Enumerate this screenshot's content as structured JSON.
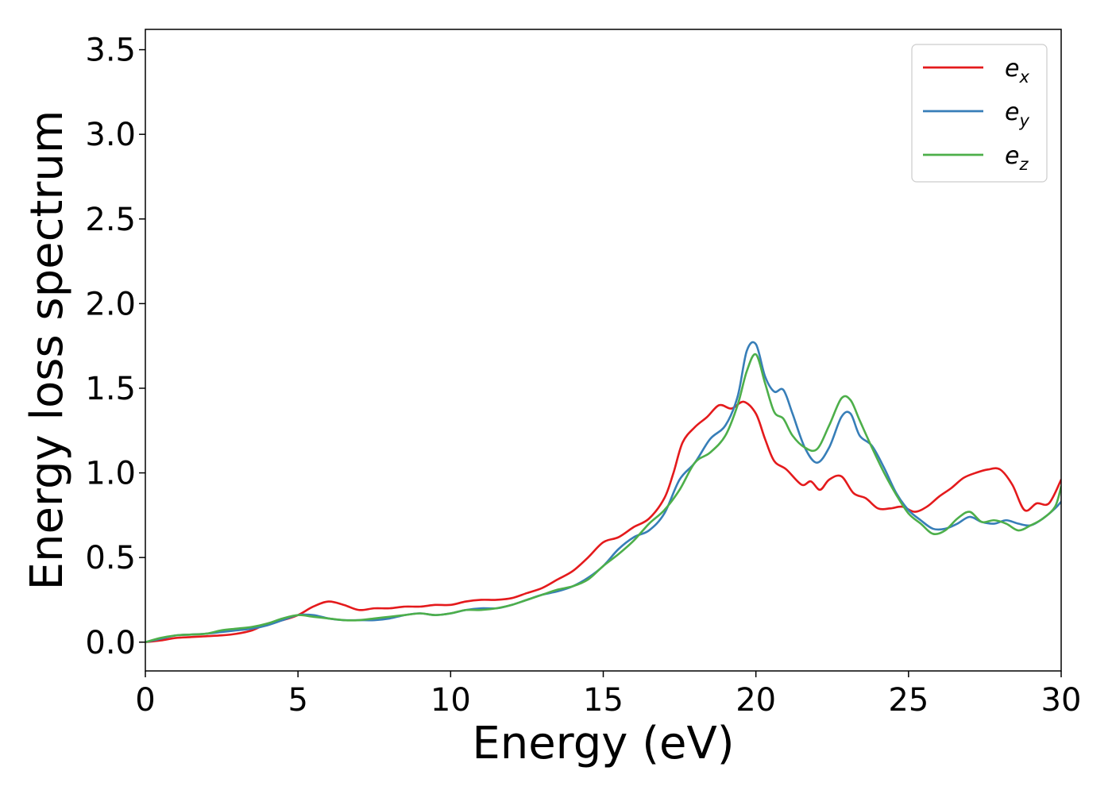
{
  "chart_data": {
    "type": "line",
    "title": "",
    "xlabel": "Energy (eV)",
    "ylabel": "Energy loss spectrum",
    "xlim": [
      0,
      30
    ],
    "ylim": [
      -0.17,
      3.62
    ],
    "xticks": [
      0,
      5,
      10,
      15,
      20,
      25,
      30
    ],
    "xtick_labels": [
      "0",
      "5",
      "10",
      "15",
      "20",
      "25",
      "30"
    ],
    "yticks": [
      0.0,
      0.5,
      1.0,
      1.5,
      2.0,
      2.5,
      3.0,
      3.5
    ],
    "ytick_labels": [
      "0.0",
      "0.5",
      "1.0",
      "1.5",
      "2.0",
      "2.5",
      "3.0",
      "3.5"
    ],
    "grid": false,
    "legend_position": "top-right",
    "series": [
      {
        "name": "e_x",
        "legend_base": "e",
        "legend_sub": "x",
        "color": "#e41a1c",
        "x": [
          0,
          0.5,
          1,
          1.5,
          2,
          2.5,
          3,
          3.5,
          4,
          4.5,
          5,
          5.5,
          6,
          6.5,
          7,
          7.5,
          8,
          8.5,
          9,
          9.5,
          10,
          10.5,
          11,
          11.5,
          12,
          12.5,
          13,
          13.5,
          14,
          14.5,
          15,
          15.5,
          16,
          16.5,
          17,
          17.3,
          17.6,
          18,
          18.4,
          18.8,
          19.2,
          19.6,
          20,
          20.3,
          20.6,
          21,
          21.5,
          21.8,
          22.1,
          22.4,
          22.8,
          23.2,
          23.6,
          24,
          24.4,
          24.8,
          25.2,
          25.6,
          26,
          26.4,
          26.8,
          27.2,
          27.6,
          28,
          28.4,
          28.8,
          29.2,
          29.6,
          30
        ],
        "y": [
          0.0,
          0.01,
          0.025,
          0.03,
          0.035,
          0.04,
          0.05,
          0.07,
          0.11,
          0.13,
          0.16,
          0.21,
          0.24,
          0.22,
          0.19,
          0.2,
          0.2,
          0.21,
          0.21,
          0.22,
          0.22,
          0.24,
          0.25,
          0.25,
          0.26,
          0.29,
          0.32,
          0.37,
          0.42,
          0.5,
          0.59,
          0.62,
          0.68,
          0.73,
          0.85,
          1.0,
          1.18,
          1.27,
          1.33,
          1.4,
          1.38,
          1.42,
          1.35,
          1.2,
          1.07,
          1.02,
          0.93,
          0.95,
          0.9,
          0.96,
          0.98,
          0.88,
          0.85,
          0.79,
          0.79,
          0.8,
          0.77,
          0.8,
          0.86,
          0.91,
          0.97,
          1.0,
          1.02,
          1.02,
          0.93,
          0.78,
          0.82,
          0.82,
          0.96
        ]
      },
      {
        "name": "e_y",
        "legend_base": "e",
        "legend_sub": "y",
        "color": "#377eb8",
        "x": [
          0,
          0.5,
          1,
          1.5,
          2,
          2.5,
          3,
          3.5,
          4,
          4.5,
          5,
          5.5,
          6,
          6.5,
          7,
          7.5,
          8,
          8.5,
          9,
          9.5,
          10,
          10.5,
          11,
          11.5,
          12,
          12.5,
          13,
          13.5,
          14,
          14.5,
          15,
          15.5,
          16,
          16.5,
          17,
          17.5,
          18,
          18.5,
          19,
          19.4,
          19.7,
          20,
          20.3,
          20.6,
          20.9,
          21.2,
          21.6,
          22,
          22.4,
          22.8,
          23.1,
          23.4,
          23.8,
          24.2,
          24.6,
          25,
          25.4,
          25.8,
          26.2,
          26.6,
          27,
          27.4,
          27.8,
          28.2,
          28.6,
          29,
          29.4,
          29.8,
          30
        ],
        "y": [
          0.0,
          0.02,
          0.04,
          0.045,
          0.05,
          0.06,
          0.07,
          0.08,
          0.1,
          0.13,
          0.16,
          0.16,
          0.14,
          0.13,
          0.13,
          0.13,
          0.14,
          0.16,
          0.17,
          0.16,
          0.17,
          0.19,
          0.2,
          0.2,
          0.22,
          0.25,
          0.28,
          0.3,
          0.33,
          0.38,
          0.45,
          0.55,
          0.62,
          0.66,
          0.76,
          0.96,
          1.06,
          1.2,
          1.28,
          1.45,
          1.72,
          1.76,
          1.57,
          1.48,
          1.49,
          1.35,
          1.15,
          1.06,
          1.15,
          1.33,
          1.35,
          1.22,
          1.16,
          1.03,
          0.88,
          0.78,
          0.72,
          0.67,
          0.67,
          0.7,
          0.74,
          0.71,
          0.7,
          0.72,
          0.7,
          0.69,
          0.73,
          0.79,
          0.83
        ]
      },
      {
        "name": "e_z",
        "legend_base": "e",
        "legend_sub": "z",
        "color": "#4daf4a",
        "x": [
          0,
          0.5,
          1,
          1.5,
          2,
          2.5,
          3,
          3.5,
          4,
          4.5,
          5,
          5.5,
          6,
          6.5,
          7,
          7.5,
          8,
          8.5,
          9,
          9.5,
          10,
          10.5,
          11,
          11.5,
          12,
          12.5,
          13,
          13.5,
          14,
          14.5,
          15,
          15.5,
          16,
          16.5,
          17,
          17.5,
          18,
          18.5,
          19,
          19.4,
          19.7,
          20,
          20.3,
          20.6,
          20.9,
          21.2,
          21.6,
          22,
          22.4,
          22.8,
          23.1,
          23.4,
          23.8,
          24.2,
          24.6,
          25,
          25.4,
          25.8,
          26.2,
          26.6,
          27,
          27.4,
          27.8,
          28.2,
          28.6,
          29,
          29.4,
          29.8,
          30
        ],
        "y": [
          0.0,
          0.025,
          0.04,
          0.045,
          0.05,
          0.07,
          0.08,
          0.09,
          0.11,
          0.14,
          0.16,
          0.15,
          0.14,
          0.13,
          0.13,
          0.14,
          0.15,
          0.16,
          0.17,
          0.16,
          0.17,
          0.19,
          0.19,
          0.2,
          0.22,
          0.25,
          0.28,
          0.31,
          0.33,
          0.37,
          0.45,
          0.52,
          0.6,
          0.7,
          0.78,
          0.9,
          1.06,
          1.12,
          1.22,
          1.4,
          1.6,
          1.7,
          1.53,
          1.36,
          1.32,
          1.22,
          1.15,
          1.14,
          1.28,
          1.44,
          1.43,
          1.31,
          1.15,
          1.0,
          0.87,
          0.76,
          0.7,
          0.64,
          0.66,
          0.73,
          0.77,
          0.71,
          0.72,
          0.7,
          0.66,
          0.69,
          0.73,
          0.8,
          0.92
        ]
      }
    ]
  }
}
